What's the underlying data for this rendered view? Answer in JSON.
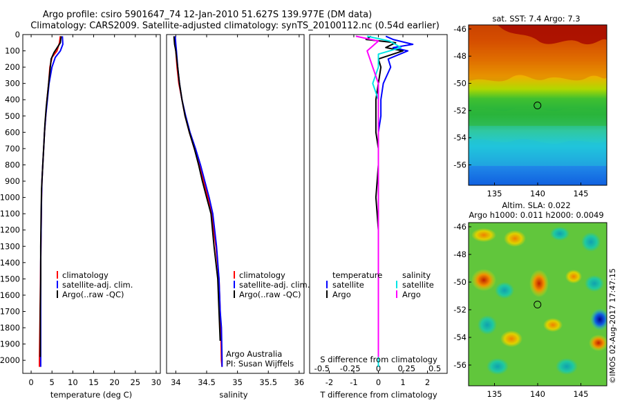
{
  "header": {
    "line1": "Argo profile: csiro 5901647_74 12-Jan-2010 51.627S 139.977E (DM data)",
    "line2": "Climatology: CARS2009. Satellite-adjusted climatology: synTS_20100112.nc (0.54d earlier)"
  },
  "colors": {
    "climatology": "#ff0000",
    "satellite": "#0000ff",
    "argo": "#000000",
    "sat_salinity": "#00e5e5",
    "argo_salinity": "#ff00ff"
  },
  "chart_data": [
    {
      "type": "line",
      "id": "temperature",
      "xlabel": "temperature (deg C)",
      "ylabel": "",
      "xlim": [
        -2,
        31
      ],
      "ylim": [
        2080,
        0
      ],
      "xticks": [
        "0",
        "5",
        "10",
        "15",
        "20",
        "25",
        "30"
      ],
      "xtick_values": [
        0,
        5,
        10,
        15,
        20,
        25,
        30
      ],
      "yticks": [
        "0",
        "100",
        "200",
        "300",
        "400",
        "500",
        "600",
        "700",
        "800",
        "900",
        "1000",
        "1100",
        "1200",
        "1300",
        "1400",
        "1500",
        "1600",
        "1700",
        "1800",
        "1900",
        "2000"
      ],
      "ytick_values": [
        0,
        100,
        200,
        300,
        400,
        500,
        600,
        700,
        800,
        900,
        1000,
        1100,
        1200,
        1300,
        1400,
        1500,
        1600,
        1700,
        1800,
        1900,
        2000
      ],
      "legend": [
        "climatology",
        "satellite-adj. clim.",
        "Argo(..raw -QC)"
      ],
      "series": [
        {
          "name": "climatology",
          "color": "#ff0000",
          "x": [
            7.0,
            6.8,
            6.2,
            5.0,
            4.5,
            4.2,
            3.8,
            3.5,
            3.2,
            3.0,
            2.8,
            2.6,
            2.5,
            2.4,
            2.3,
            2.2,
            2.1,
            2.0,
            2.0
          ],
          "y": [
            10,
            50,
            100,
            140,
            200,
            300,
            400,
            500,
            600,
            700,
            800,
            900,
            1000,
            1200,
            1400,
            1600,
            1800,
            2000,
            2040
          ]
        },
        {
          "name": "satellite-adj. clim.",
          "color": "#0000ff",
          "x": [
            7.5,
            7.6,
            7.0,
            5.8,
            5.0,
            4.3,
            3.9,
            3.5,
            3.2,
            3.0,
            2.8,
            2.6,
            2.5,
            2.4,
            2.3,
            2.3,
            2.3,
            2.3,
            2.3
          ],
          "y": [
            10,
            60,
            100,
            140,
            200,
            300,
            400,
            500,
            600,
            700,
            800,
            900,
            1000,
            1200,
            1400,
            1600,
            1800,
            2000,
            2040
          ]
        },
        {
          "name": "Argo(..raw -QC)",
          "color": "#000000",
          "x": [
            7.2,
            7.0,
            5.5,
            4.8,
            4.6,
            4.0,
            3.6,
            3.3,
            3.1,
            2.9,
            2.7,
            2.5,
            2.4,
            2.3,
            2.3,
            2.2,
            2.2
          ],
          "y": [
            10,
            50,
            110,
            150,
            200,
            350,
            450,
            550,
            650,
            750,
            850,
            950,
            1100,
            1300,
            1500,
            1700,
            1980
          ]
        }
      ]
    },
    {
      "type": "line",
      "id": "salinity",
      "xlabel": "salinity",
      "xlim": [
        33.85,
        36.08
      ],
      "ylim": [
        2080,
        0
      ],
      "xticks": [
        "34",
        "34.5",
        "35",
        "35.5",
        "36"
      ],
      "xtick_values": [
        34,
        34.5,
        35,
        35.5,
        36
      ],
      "legend": [
        "climatology",
        "satellite-adj. clim.",
        "Argo(..raw -QC)"
      ],
      "series": [
        {
          "name": "climatology",
          "color": "#ff0000",
          "x": [
            33.98,
            33.99,
            34.0,
            34.02,
            34.05,
            34.1,
            34.15,
            34.22,
            34.3,
            34.38,
            34.45,
            34.52,
            34.58,
            34.65,
            34.7,
            34.72,
            34.73,
            34.74,
            34.75
          ],
          "y": [
            10,
            60,
            100,
            200,
            300,
            400,
            500,
            600,
            700,
            800,
            900,
            1000,
            1100,
            1300,
            1500,
            1700,
            1800,
            2000,
            2040
          ]
        },
        {
          "name": "satellite-adj. clim.",
          "color": "#0000ff",
          "x": [
            33.99,
            34.0,
            34.01,
            34.03,
            34.06,
            34.1,
            34.16,
            34.23,
            34.32,
            34.4,
            34.47,
            34.54,
            34.6,
            34.66,
            34.7,
            34.72,
            34.74,
            34.75,
            34.75
          ],
          "y": [
            10,
            60,
            100,
            200,
            300,
            400,
            500,
            600,
            700,
            800,
            900,
            1000,
            1100,
            1300,
            1500,
            1700,
            1800,
            2000,
            2040
          ]
        },
        {
          "name": "Argo(..raw -QC)",
          "color": "#000000",
          "x": [
            33.97,
            33.98,
            34.0,
            34.03,
            34.06,
            34.1,
            34.15,
            34.22,
            34.3,
            34.37,
            34.43,
            34.5,
            34.57,
            34.62,
            34.68,
            34.7,
            34.72
          ],
          "y": [
            10,
            60,
            100,
            200,
            300,
            400,
            500,
            600,
            700,
            800,
            900,
            1000,
            1100,
            1300,
            1500,
            1700,
            1880
          ]
        }
      ]
    },
    {
      "type": "line",
      "id": "differences",
      "xlabel": "T difference from climatology",
      "top_label": "S difference from climatology",
      "xlim": [
        -2.8,
        2.8
      ],
      "ylim": [
        2080,
        0
      ],
      "xticks_T": [
        "-2",
        "-1",
        "0",
        "1",
        "2"
      ],
      "xtick_values_T": [
        -2,
        -1,
        0,
        1,
        2
      ],
      "xticks_S": [
        "-0.5",
        "-0.25",
        "0",
        "0.25",
        "0.5"
      ],
      "xtick_values_S": [
        -0.5,
        -0.25,
        0,
        0.25,
        0.5
      ],
      "legend_temperature_title": "temperature",
      "legend_salinity_title": "salinity",
      "legend_temperature": [
        "satellite",
        "Argo"
      ],
      "legend_salinity": [
        "satellite",
        "Argo"
      ],
      "series": [
        {
          "name": "temperature satellite",
          "color": "#0000ff",
          "x": [
            0.3,
            0.6,
            1.4,
            0.6,
            1.2,
            0.4,
            0.5,
            0.2,
            0.1,
            0.1,
            0.0,
            0.0,
            0.0,
            0.0,
            0.0,
            0.0,
            0.0,
            0.0
          ],
          "y": [
            10,
            30,
            60,
            80,
            100,
            150,
            200,
            300,
            400,
            500,
            600,
            800,
            1000,
            1200,
            1400,
            1600,
            1800,
            2040
          ]
        },
        {
          "name": "temperature Argo",
          "color": "#000000",
          "x": [
            -0.3,
            -0.5,
            0.7,
            0.3,
            1.0,
            0.0,
            0.1,
            0.0,
            -0.1,
            -0.1,
            -0.1,
            0.0,
            0.0,
            -0.1,
            0.0,
            0.0,
            0.0
          ],
          "y": [
            10,
            30,
            50,
            80,
            100,
            150,
            200,
            300,
            400,
            500,
            600,
            700,
            800,
            1000,
            1200,
            1500,
            1980
          ]
        },
        {
          "name": "salinity satellite",
          "color": "#00e5e5",
          "x": [
            -0.1,
            0.1,
            0.2,
            0.0,
            0.0,
            -0.05,
            0.0,
            0.0,
            0.0,
            0.0,
            0.0,
            0.0,
            0.0,
            0.0,
            0.0,
            0.0,
            0.0
          ],
          "y": [
            10,
            40,
            80,
            120,
            200,
            300,
            400,
            500,
            600,
            700,
            800,
            1000,
            1200,
            1400,
            1600,
            1800,
            2040
          ]
        },
        {
          "name": "salinity Argo",
          "color": "#ff00ff",
          "x": [
            -0.2,
            0.0,
            -0.1,
            -0.05,
            0.0,
            0.0,
            0.0,
            0.0,
            0.0,
            0.0,
            0.0,
            0.0,
            0.0
          ],
          "y": [
            10,
            40,
            100,
            200,
            300,
            400,
            600,
            800,
            1000,
            1200,
            1500,
            1700,
            1980
          ]
        }
      ]
    },
    {
      "type": "heatmap",
      "id": "sst_map",
      "title": "sat. SST: 7.4  Argo: 7.3",
      "xlim": [
        132,
        148
      ],
      "ylim": [
        -57.5,
        -45.7
      ],
      "xticks": [
        "135",
        "140",
        "145"
      ],
      "xtick_values": [
        135,
        140,
        145
      ],
      "yticks": [
        "-46",
        "-48",
        "-50",
        "-52",
        "-54",
        "-56"
      ],
      "ytick_values": [
        -46,
        -48,
        -50,
        -52,
        -54,
        -56
      ],
      "marker": {
        "lon": 139.977,
        "lat": -51.627
      }
    },
    {
      "type": "heatmap",
      "id": "sla_map",
      "title_line1": "Altim. SLA: 0.022",
      "title_line2": "Argo h1000: 0.011 h2000: 0.0049",
      "xlim": [
        132,
        148
      ],
      "ylim": [
        -57.5,
        -45.7
      ],
      "xticks": [
        "135",
        "140",
        "145"
      ],
      "xtick_values": [
        135,
        140,
        145
      ],
      "yticks": [
        "-46",
        "-48",
        "-50",
        "-52",
        "-54",
        "-56"
      ],
      "ytick_values": [
        -46,
        -48,
        -50,
        -52,
        -54,
        -56
      ],
      "marker": {
        "lon": 139.977,
        "lat": -51.627
      }
    }
  ],
  "annotations": {
    "institution": "Argo Australia",
    "pi": "PI: Susan Wijffels",
    "side_stamp": "©IMOS 02-Aug-2017 17:47:15"
  }
}
